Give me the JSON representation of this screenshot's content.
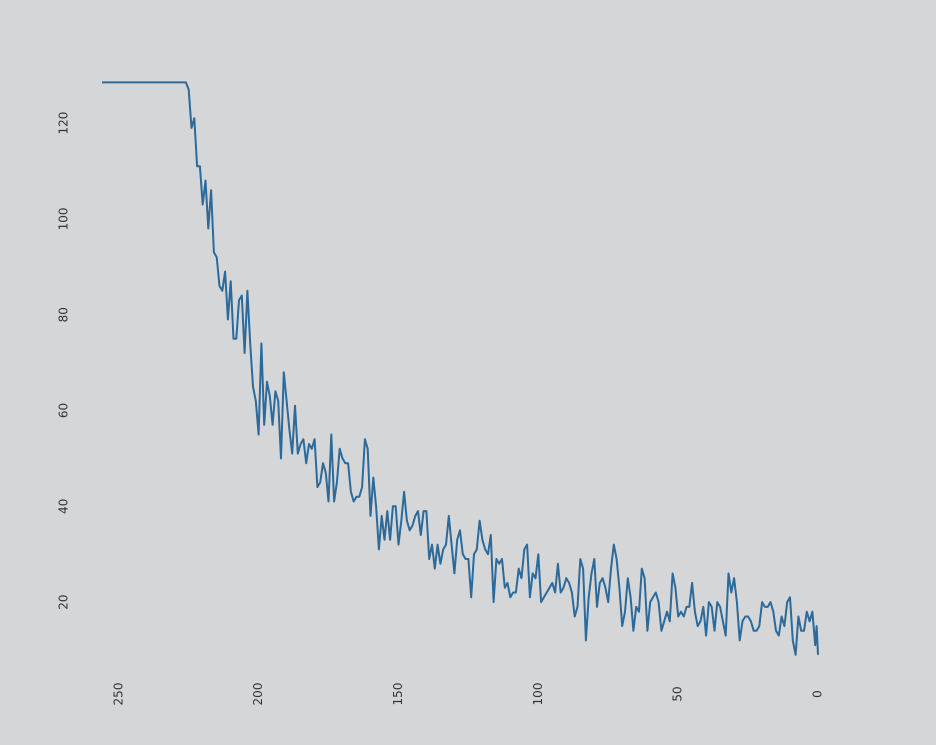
{
  "chart_data": {
    "type": "line",
    "title": "",
    "xlabel": "",
    "ylabel": "",
    "x_reversed": true,
    "xlim": [
      0,
      256
    ],
    "ylim": [
      10,
      129
    ],
    "x_ticks": [
      250,
      200,
      150,
      100,
      50,
      0
    ],
    "y_ticks": [
      20,
      40,
      60,
      80,
      100,
      120
    ],
    "grid": false,
    "legend": "none",
    "line_color": "#2b6a9a",
    "background": "#d5d6d8",
    "series": [
      {
        "x": [
          256,
          255,
          250,
          245,
          240,
          235,
          230,
          226,
          225,
          224,
          223,
          222,
          221,
          220,
          219,
          218,
          217,
          216,
          215,
          214,
          213,
          212,
          211,
          210,
          209,
          208,
          207,
          206,
          205,
          204,
          203,
          202,
          201,
          200,
          199,
          198,
          197,
          196,
          195,
          194,
          193,
          192,
          191,
          190,
          189,
          188,
          187,
          186,
          185,
          184,
          183,
          182,
          181,
          180,
          179,
          178,
          177,
          176,
          175,
          174,
          173,
          172,
          171,
          170,
          169,
          168,
          167,
          166,
          165,
          164,
          163,
          162,
          161,
          160,
          159,
          158,
          157,
          156,
          155,
          154,
          153,
          152,
          151,
          150,
          149,
          148,
          147,
          146,
          145,
          144,
          143,
          142,
          141,
          140,
          139,
          138,
          137,
          136,
          135,
          134,
          133,
          132,
          131,
          130,
          129,
          128,
          127,
          126,
          125,
          124,
          123,
          122,
          121,
          120,
          119,
          118,
          117,
          116,
          115,
          114,
          113,
          112,
          111,
          110,
          109,
          108,
          107,
          106,
          105,
          104,
          103,
          102,
          101,
          100,
          99,
          98,
          97,
          96,
          95,
          94,
          93,
          92,
          91,
          90,
          89,
          88,
          87,
          86,
          85,
          84,
          83,
          82,
          81,
          80,
          79,
          78,
          77,
          76,
          75,
          74,
          73,
          72,
          71,
          70,
          69,
          68,
          67,
          66,
          65,
          64,
          63,
          62,
          61,
          60,
          59,
          58,
          57,
          56,
          55,
          54,
          53,
          52,
          51,
          50,
          49,
          48,
          47,
          46,
          45,
          44,
          43,
          42,
          41,
          40,
          39,
          38,
          37,
          36,
          35,
          34,
          33,
          32,
          31,
          30,
          29,
          28,
          27,
          26,
          25,
          24,
          23,
          22,
          21,
          20,
          19,
          18,
          17,
          16,
          15,
          14,
          13,
          12,
          11,
          10,
          9,
          8,
          7,
          6,
          5,
          4,
          3,
          2,
          1,
          0.5,
          0
        ],
        "y": [
          128.5,
          128.5,
          128.5,
          128.5,
          128.5,
          128.5,
          128.5,
          128.5,
          127,
          119,
          121,
          111,
          111,
          103,
          108,
          98,
          106,
          93,
          92,
          86,
          85,
          89,
          79,
          87,
          75,
          75,
          83,
          84,
          72,
          85,
          74,
          65,
          62,
          55,
          74,
          57,
          66,
          63,
          57,
          64,
          62,
          50,
          68,
          62,
          56,
          51,
          61,
          51,
          53,
          54,
          49,
          53,
          52,
          54,
          44,
          45,
          49,
          47,
          41,
          55,
          41,
          45,
          52,
          50,
          49,
          49,
          43,
          41,
          42,
          42,
          44,
          54,
          52,
          38,
          46,
          40,
          31,
          38,
          33,
          39,
          33,
          40,
          40,
          32,
          37,
          43,
          37,
          35,
          36,
          38,
          39,
          34,
          39,
          39,
          29,
          32,
          27,
          32,
          28,
          31,
          32,
          38,
          32,
          26,
          33,
          35,
          30,
          29,
          29,
          21,
          30,
          31,
          37,
          33,
          31,
          30,
          34,
          20,
          29,
          28,
          29,
          23,
          24,
          21,
          22,
          22,
          27,
          25,
          31,
          32,
          21,
          26,
          25,
          30,
          20,
          21,
          22,
          23,
          24,
          22,
          28,
          22,
          23,
          25,
          24,
          22,
          17,
          19,
          29,
          27,
          12,
          21,
          26,
          29,
          19,
          24,
          25,
          23,
          20,
          27,
          32,
          29,
          23,
          15,
          18,
          25,
          21,
          14,
          19,
          18,
          27,
          25,
          14,
          20,
          21,
          22,
          20,
          14,
          16,
          18,
          16,
          26,
          23,
          17,
          18,
          17,
          19,
          19,
          24,
          18,
          15,
          16,
          19,
          13,
          20,
          19,
          14,
          20,
          19,
          16,
          13,
          26,
          22,
          25,
          20,
          12,
          16,
          17,
          17,
          16,
          14,
          14,
          15,
          20,
          19,
          19,
          20,
          18,
          14,
          13,
          17,
          15,
          20,
          21,
          12,
          9,
          17,
          14,
          14,
          18,
          16,
          18,
          11,
          15,
          9
        ]
      }
    ]
  }
}
